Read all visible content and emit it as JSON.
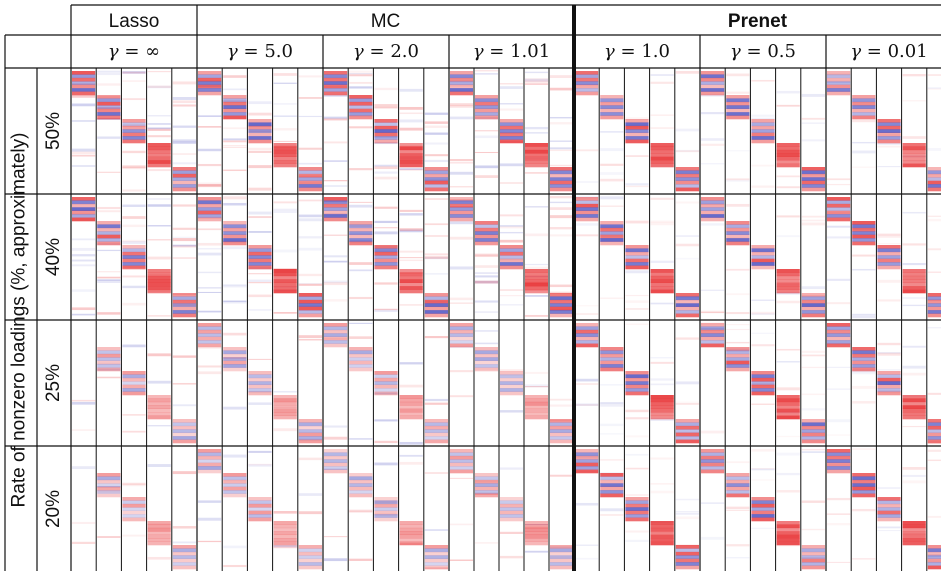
{
  "header": {
    "groups": [
      {
        "label": "Lasso",
        "bold": false
      },
      {
        "label": "MC",
        "bold": false
      },
      {
        "label": "Prenet",
        "bold": true
      }
    ],
    "gamma_symbol": "γ",
    "columns": [
      {
        "group": "Lasso",
        "gamma": "∞"
      },
      {
        "group": "MC",
        "gamma": "5.0"
      },
      {
        "group": "MC",
        "gamma": "2.0"
      },
      {
        "group": "MC",
        "gamma": "1.01"
      },
      {
        "group": "Prenet",
        "gamma": "1.0"
      },
      {
        "group": "Prenet",
        "gamma": "0.5"
      },
      {
        "group": "Prenet",
        "gamma": "0.01"
      }
    ]
  },
  "y_axis_label": "Rate of nonzero loadings (%, approximately)",
  "rows": [
    {
      "label": "50%"
    },
    {
      "label": "40%"
    },
    {
      "label": "25%"
    },
    {
      "label": "20%"
    }
  ],
  "heatmap": {
    "factors_per_cell": 5,
    "colors": {
      "positive": "#e8383a",
      "negative": "#4a4fc0",
      "zero": "#ffffff",
      "grid": "#111111"
    }
  }
}
